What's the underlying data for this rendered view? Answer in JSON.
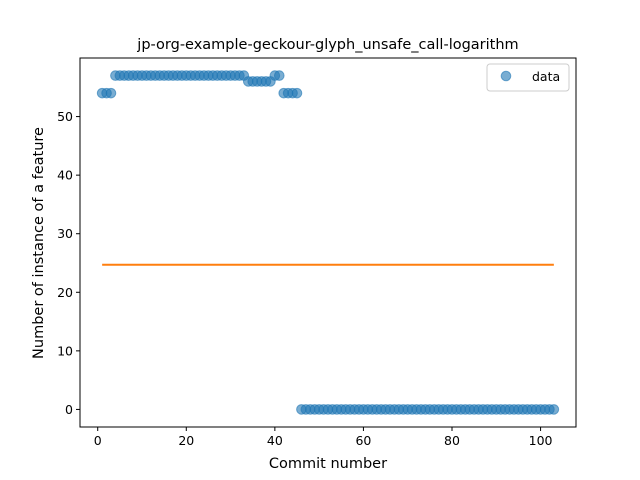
{
  "chart_data": {
    "type": "scatter",
    "title": "jp-org-example-geckour-glyph_unsafe_call-logarithm",
    "xlabel": "Commit number",
    "ylabel": "Number of instance of a feature",
    "xlim": [
      -4,
      108
    ],
    "ylim": [
      -3,
      60
    ],
    "xticks": [
      0,
      20,
      40,
      60,
      80,
      100
    ],
    "yticks": [
      0,
      10,
      20,
      30,
      40,
      50
    ],
    "legend": {
      "placement": "top-right",
      "entries": [
        "data"
      ]
    },
    "colors": {
      "data": "#1f77b4",
      "fit": "#ff7f0e"
    },
    "series": [
      {
        "name": "data",
        "kind": "scatter",
        "segments": [
          {
            "x_from": 1,
            "x_to": 3,
            "y": 54
          },
          {
            "x_from": 4,
            "x_to": 33,
            "y": 57
          },
          {
            "x_from": 34,
            "x_to": 39,
            "y": 56
          },
          {
            "x_from": 40,
            "x_to": 41,
            "y": 57
          },
          {
            "x_from": 42,
            "x_to": 45,
            "y": 54
          },
          {
            "x_from": 46,
            "x_to": 103,
            "y": 0
          }
        ]
      },
      {
        "kind": "line",
        "x": [
          1,
          103
        ],
        "y": [
          24.7,
          24.7
        ]
      }
    ]
  }
}
